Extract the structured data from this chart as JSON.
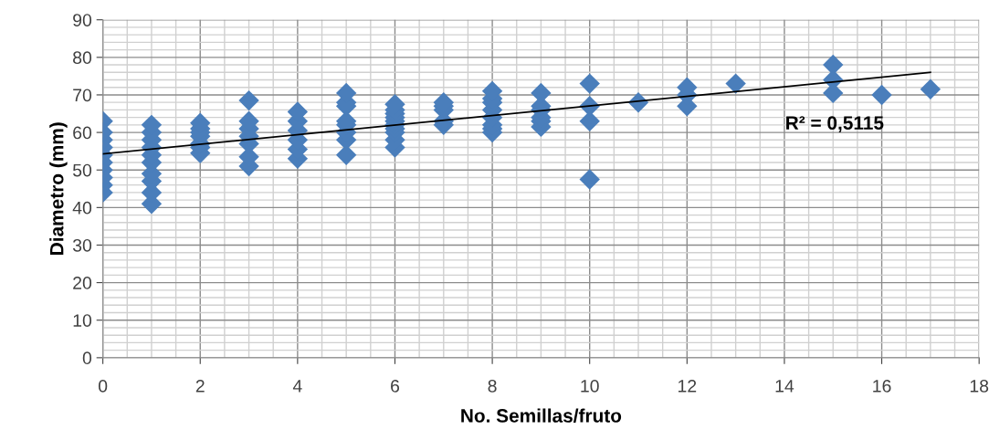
{
  "chart_data": {
    "type": "scatter",
    "xlabel": "No. Semillas/fruto",
    "ylabel": "Diametro (mm)",
    "xlim": [
      0,
      18
    ],
    "xticks": [
      0,
      2,
      4,
      6,
      8,
      10,
      12,
      14,
      16,
      18
    ],
    "ylim": [
      0,
      90
    ],
    "yticks": [
      0,
      10,
      20,
      30,
      40,
      50,
      60,
      70,
      80,
      90
    ],
    "grid": true,
    "annotations": [
      "R² = 0,5115"
    ],
    "series": [
      {
        "marker": "diamond",
        "color": "#4a7ebb",
        "x": [
          0,
          0,
          0,
          0,
          0,
          0,
          0,
          0,
          0,
          0,
          1,
          1,
          1,
          1,
          1,
          1,
          1,
          1,
          1,
          1,
          2,
          2,
          2,
          2,
          2,
          2,
          2,
          3,
          3,
          3,
          3,
          3,
          3,
          3,
          4,
          4,
          4,
          4,
          4,
          4,
          5,
          5,
          5,
          5,
          5,
          5,
          5,
          5,
          6,
          6,
          6,
          6,
          6,
          6,
          6,
          6,
          6,
          6,
          7,
          7,
          7,
          7,
          7,
          8,
          8,
          8,
          8,
          8,
          8,
          8,
          8,
          9,
          9,
          9,
          9,
          9,
          9,
          10,
          10,
          10,
          10,
          11,
          12,
          12,
          12,
          13,
          15,
          15,
          15,
          16,
          17
        ],
        "values": [
          44,
          46,
          48,
          50,
          52,
          54,
          56,
          58,
          60,
          63,
          41,
          44,
          47,
          49,
          52,
          54,
          56,
          58,
          60,
          62,
          54.5,
          56,
          57,
          59,
          60,
          61,
          62.5,
          51,
          53.5,
          57,
          59,
          61,
          63,
          68.5,
          53,
          55.5,
          58,
          60.5,
          63,
          65.5,
          54,
          58,
          60,
          62,
          63,
          67,
          68,
          70.5,
          56,
          58,
          60,
          61,
          62,
          63,
          64,
          65,
          66,
          67.5,
          62,
          63,
          66,
          67,
          68,
          60,
          61,
          62,
          64,
          66,
          68,
          69,
          71,
          61.5,
          63,
          64,
          66,
          67,
          70.5,
          47.5,
          63,
          67,
          73,
          68,
          67,
          70,
          72,
          73,
          70.5,
          74,
          78,
          70,
          71.5
        ]
      },
      {
        "type": "line",
        "color": "#000000",
        "x": [
          0,
          17
        ],
        "values": [
          54.3,
          76
        ]
      }
    ]
  }
}
